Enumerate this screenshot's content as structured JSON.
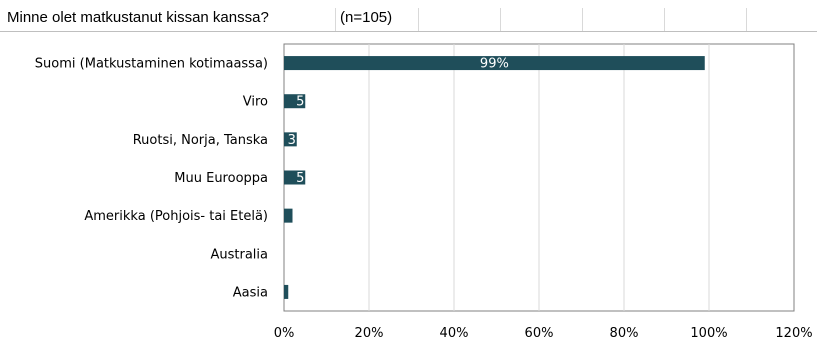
{
  "header": {
    "title": "Minne olet matkustanut kissan kanssa?",
    "n_label": "(n=105)"
  },
  "colors": {
    "bar": "#1f4e5a",
    "gridline": "#d9d9d9",
    "axis": "#808080"
  },
  "chart_data": {
    "type": "bar",
    "orientation": "horizontal",
    "title": "",
    "xlabel": "",
    "ylabel": "",
    "categories": [
      "Suomi (Matkustaminen kotimaassa)",
      "Viro",
      "Ruotsi, Norja, Tanska",
      "Muu Eurooppa",
      "Amerikka (Pohjois- tai Etelä)",
      "Australia",
      "Aasia"
    ],
    "values": [
      99,
      5,
      3,
      5,
      2,
      0,
      1
    ],
    "data_labels": [
      "99%",
      "5",
      "3",
      "5",
      "",
      "",
      ""
    ],
    "xlim": [
      0,
      120
    ],
    "x_ticks": [
      "0%",
      "20%",
      "40%",
      "60%",
      "80%",
      "100%",
      "120%"
    ],
    "x_tick_values": [
      0,
      20,
      40,
      60,
      80,
      100,
      120
    ],
    "grid": true,
    "legend": "none"
  }
}
